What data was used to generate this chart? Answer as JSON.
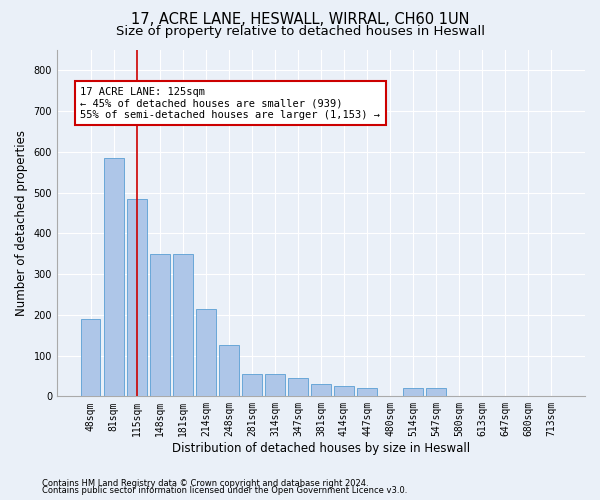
{
  "title1": "17, ACRE LANE, HESWALL, WIRRAL, CH60 1UN",
  "title2": "Size of property relative to detached houses in Heswall",
  "xlabel": "Distribution of detached houses by size in Heswall",
  "ylabel": "Number of detached properties",
  "footer1": "Contains HM Land Registry data © Crown copyright and database right 2024.",
  "footer2": "Contains public sector information licensed under the Open Government Licence v3.0.",
  "categories": [
    "48sqm",
    "81sqm",
    "115sqm",
    "148sqm",
    "181sqm",
    "214sqm",
    "248sqm",
    "281sqm",
    "314sqm",
    "347sqm",
    "381sqm",
    "414sqm",
    "447sqm",
    "480sqm",
    "514sqm",
    "547sqm",
    "580sqm",
    "613sqm",
    "647sqm",
    "680sqm",
    "713sqm"
  ],
  "values": [
    190,
    585,
    485,
    350,
    350,
    215,
    125,
    55,
    55,
    45,
    30,
    25,
    20,
    0,
    20,
    20,
    0,
    0,
    0,
    0,
    0
  ],
  "bar_color": "#aec6e8",
  "bar_edge_color": "#5a9fd4",
  "property_line_x": 2,
  "property_line_color": "#cc0000",
  "annotation_text": "17 ACRE LANE: 125sqm\n← 45% of detached houses are smaller (939)\n55% of semi-detached houses are larger (1,153) →",
  "annotation_box_color": "#ffffff",
  "annotation_box_edge_color": "#cc0000",
  "ylim": [
    0,
    850
  ],
  "yticks": [
    0,
    100,
    200,
    300,
    400,
    500,
    600,
    700,
    800
  ],
  "bg_color": "#eaf0f8",
  "plot_bg_color": "#eaf0f8",
  "grid_color": "#ffffff",
  "title_fontsize": 10.5,
  "subtitle_fontsize": 9.5,
  "axis_label_fontsize": 8.5,
  "tick_fontsize": 7,
  "footer_fontsize": 6
}
